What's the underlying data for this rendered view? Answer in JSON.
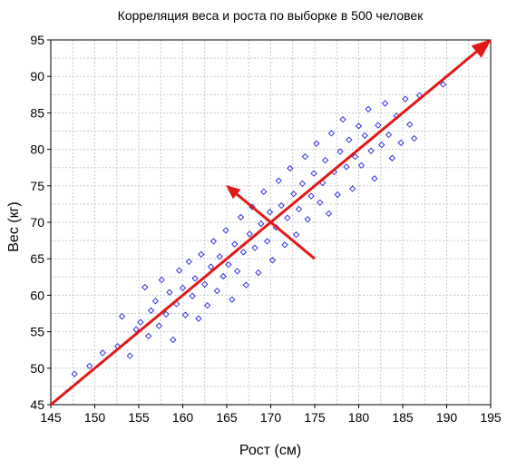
{
  "chart_data": {
    "type": "scatter",
    "title": "Корреляция веса и роста по выборке в 500 человек",
    "xlabel": "Рост (см)",
    "ylabel": "Вес (кг)",
    "xlim": [
      145,
      195
    ],
    "ylim": [
      45,
      95
    ],
    "x_ticks": [
      "145",
      "150",
      "155",
      "160",
      "165",
      "170",
      "175",
      "180",
      "185",
      "190",
      "195"
    ],
    "y_ticks": [
      "45",
      "50",
      "55",
      "60",
      "65",
      "70",
      "75",
      "80",
      "85",
      "90",
      "95"
    ],
    "grid": true,
    "marker": "diamond-open",
    "point_color": "#2222dd",
    "arrow_color": "#e01818",
    "point_count": 500,
    "points": [
      [
        147.7,
        49.2
      ],
      [
        149.4,
        50.3
      ],
      [
        150.9,
        52.1
      ],
      [
        152.6,
        53.0
      ],
      [
        153.1,
        57.1
      ],
      [
        154.0,
        51.7
      ],
      [
        154.7,
        55.3
      ],
      [
        155.2,
        56.3
      ],
      [
        155.7,
        61.1
      ],
      [
        156.1,
        54.4
      ],
      [
        156.4,
        57.9
      ],
      [
        156.9,
        59.2
      ],
      [
        157.3,
        55.8
      ],
      [
        157.6,
        62.1
      ],
      [
        158.1,
        57.4
      ],
      [
        158.5,
        60.4
      ],
      [
        158.9,
        53.9
      ],
      [
        159.3,
        58.8
      ],
      [
        159.6,
        63.4
      ],
      [
        160.0,
        61.0
      ],
      [
        160.3,
        57.3
      ],
      [
        160.7,
        64.6
      ],
      [
        161.1,
        59.9
      ],
      [
        161.4,
        62.3
      ],
      [
        161.8,
        56.8
      ],
      [
        162.1,
        65.6
      ],
      [
        162.5,
        61.5
      ],
      [
        162.8,
        58.6
      ],
      [
        163.2,
        63.9
      ],
      [
        163.5,
        67.4
      ],
      [
        163.9,
        60.6
      ],
      [
        164.2,
        65.3
      ],
      [
        164.6,
        62.6
      ],
      [
        164.9,
        68.9
      ],
      [
        165.2,
        64.2
      ],
      [
        165.6,
        59.4
      ],
      [
        165.9,
        67.0
      ],
      [
        166.2,
        63.3
      ],
      [
        166.6,
        70.7
      ],
      [
        166.9,
        65.9
      ],
      [
        167.2,
        61.4
      ],
      [
        167.6,
        68.4
      ],
      [
        167.9,
        72.1
      ],
      [
        168.2,
        66.5
      ],
      [
        168.6,
        63.1
      ],
      [
        168.9,
        69.8
      ],
      [
        169.2,
        74.2
      ],
      [
        169.6,
        67.4
      ],
      [
        169.9,
        71.4
      ],
      [
        170.2,
        64.8
      ],
      [
        170.6,
        69.3
      ],
      [
        170.9,
        75.7
      ],
      [
        171.2,
        72.3
      ],
      [
        171.6,
        66.9
      ],
      [
        171.9,
        70.6
      ],
      [
        172.2,
        77.4
      ],
      [
        172.6,
        73.9
      ],
      [
        172.9,
        68.3
      ],
      [
        173.2,
        71.8
      ],
      [
        173.6,
        75.3
      ],
      [
        173.9,
        79.0
      ],
      [
        174.2,
        70.4
      ],
      [
        174.6,
        73.6
      ],
      [
        174.9,
        76.7
      ],
      [
        175.2,
        80.8
      ],
      [
        175.6,
        72.7
      ],
      [
        175.9,
        75.4
      ],
      [
        176.2,
        78.5
      ],
      [
        176.6,
        71.2
      ],
      [
        176.9,
        82.2
      ],
      [
        177.2,
        76.9
      ],
      [
        177.6,
        73.8
      ],
      [
        177.9,
        79.7
      ],
      [
        178.2,
        84.1
      ],
      [
        178.6,
        77.6
      ],
      [
        178.9,
        81.3
      ],
      [
        179.3,
        74.6
      ],
      [
        179.6,
        79.0
      ],
      [
        180.0,
        83.2
      ],
      [
        180.3,
        77.8
      ],
      [
        180.7,
        81.9
      ],
      [
        181.1,
        85.5
      ],
      [
        181.4,
        79.8
      ],
      [
        181.8,
        76.0
      ],
      [
        182.2,
        83.3
      ],
      [
        182.6,
        80.6
      ],
      [
        183.0,
        86.3
      ],
      [
        183.4,
        82.0
      ],
      [
        183.8,
        78.8
      ],
      [
        184.3,
        84.6
      ],
      [
        184.8,
        80.9
      ],
      [
        185.3,
        86.9
      ],
      [
        185.8,
        83.4
      ],
      [
        186.3,
        81.5
      ],
      [
        186.9,
        87.4
      ],
      [
        189.6,
        88.9
      ]
    ],
    "arrows": [
      {
        "from": [
          145,
          45
        ],
        "to": [
          195,
          95
        ]
      },
      {
        "from": [
          175,
          65
        ],
        "to": [
          165,
          75
        ]
      }
    ]
  }
}
